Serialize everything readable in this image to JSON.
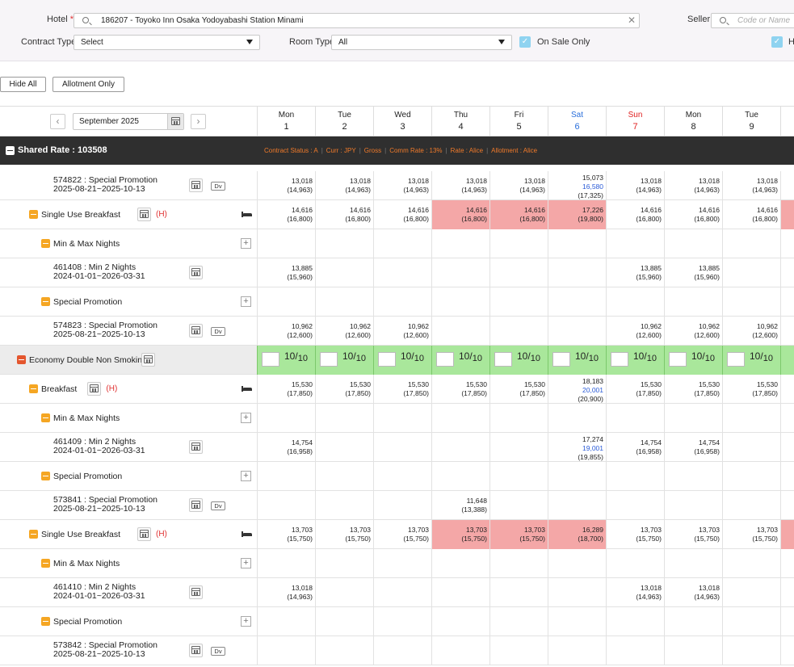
{
  "filters": {
    "hotel_label": "Hotel",
    "hotel_required": "*",
    "hotel_value": "186207 - Toyoko Inn Osaka Yodoyabashi Station Minami",
    "contract_type_label": "Contract Type",
    "contract_type_value": "Select",
    "room_type_label": "Room Type",
    "room_type_value": "All",
    "on_sale_label": "On Sale Only",
    "seller_label": "Seller",
    "seller_placeholder": "Code or Name",
    "second_check_label": "H"
  },
  "buttons": {
    "hide_all": "Hide All",
    "allotment_only": "Allotment Only"
  },
  "calendar": {
    "month": "September 2025",
    "prev": "‹",
    "next": "›"
  },
  "days": [
    {
      "name": "Mon",
      "date": "1",
      "color": "#222"
    },
    {
      "name": "Tue",
      "date": "2",
      "color": "#222"
    },
    {
      "name": "Wed",
      "date": "3",
      "color": "#222"
    },
    {
      "name": "Thu",
      "date": "4",
      "color": "#222"
    },
    {
      "name": "Fri",
      "date": "5",
      "color": "#222"
    },
    {
      "name": "Sat",
      "date": "6",
      "color": "#2a6fdb"
    },
    {
      "name": "Sun",
      "date": "7",
      "color": "#e02020"
    },
    {
      "name": "Mon",
      "date": "8",
      "color": "#222"
    },
    {
      "name": "Tue",
      "date": "9",
      "color": "#222"
    }
  ],
  "shared": {
    "title": "Shared Rate : 103508",
    "meta": [
      "Contract Status : A",
      "Curr : JPY",
      "Gross",
      "Comm Rate : 13%",
      "Rate : Alice",
      "Allotment : Alice"
    ]
  },
  "rows": [
    {
      "id": "r1",
      "label": "574822 : Special Promotion",
      "sub": "2025-08-21~2025-10-13",
      "cells": [
        [
          "13,018",
          "(14,963)"
        ],
        [
          "13,018",
          "(14,963)"
        ],
        [
          "13,018",
          "(14,963)"
        ],
        [
          "13,018",
          "(14,963)"
        ],
        [
          "13,018",
          "(14,963)"
        ],
        [
          "15,073",
          "16,580",
          "(17,325)"
        ],
        [
          "13,018",
          "(14,963)"
        ],
        [
          "13,018",
          "(14,963)"
        ],
        [
          "13,018",
          "(14,963)"
        ]
      ]
    },
    {
      "id": "r2",
      "label": "Single Use Breakfast",
      "badge": "(H)",
      "cells": [
        [
          "14,616",
          "(16,800)"
        ],
        [
          "14,616",
          "(16,800)"
        ],
        [
          "14,616",
          "(16,800)"
        ],
        [
          "14,616",
          "(16,800)"
        ],
        [
          "14,616",
          "(16,800)"
        ],
        [
          "17,226",
          "(19,800)"
        ],
        [
          "14,616",
          "(16,800)"
        ],
        [
          "14,616",
          "(16,800)"
        ],
        [
          "14,616",
          "(16,800)"
        ]
      ]
    },
    {
      "id": "r3",
      "label": "Min & Max Nights"
    },
    {
      "id": "r4",
      "label": "461408 : Min 2 Nights",
      "sub": "2024-01-01~2026-03-31",
      "cells": [
        [
          "13,885",
          "(15,960)"
        ],
        [],
        [],
        [],
        [],
        [],
        [
          "13,885",
          "(15,960)"
        ],
        [
          "13,885",
          "(15,960)"
        ],
        []
      ]
    },
    {
      "id": "r5",
      "label": "Special Promotion"
    },
    {
      "id": "r6",
      "label": "574823 : Special Promotion",
      "sub": "2025-08-21~2025-10-13",
      "cells": [
        [
          "10,962",
          "(12,600)"
        ],
        [
          "10,962",
          "(12,600)"
        ],
        [
          "10,962",
          "(12,600)"
        ],
        [],
        [],
        [],
        [
          "10,962",
          "(12,600)"
        ],
        [
          "10,962",
          "(12,600)"
        ],
        [
          "10,962",
          "(12,600)"
        ]
      ]
    },
    {
      "id": "r7",
      "label": "Economy Double Non Smoking",
      "alloc": {
        "value": "10",
        "total": "10"
      }
    },
    {
      "id": "r8",
      "label": "Breakfast",
      "badge": "(H)",
      "cells": [
        [
          "15,530",
          "(17,850)"
        ],
        [
          "15,530",
          "(17,850)"
        ],
        [
          "15,530",
          "(17,850)"
        ],
        [
          "15,530",
          "(17,850)"
        ],
        [
          "15,530",
          "(17,850)"
        ],
        [
          "18,183",
          "20,001",
          "(20,900)"
        ],
        [
          "15,530",
          "(17,850)"
        ],
        [
          "15,530",
          "(17,850)"
        ],
        [
          "15,530",
          "(17,850)"
        ]
      ]
    },
    {
      "id": "r9",
      "label": "Min & Max Nights"
    },
    {
      "id": "r10",
      "label": "461409 : Min 2 Nights",
      "sub": "2024-01-01~2026-03-31",
      "cells": [
        [
          "14,754",
          "(16,958)"
        ],
        [],
        [],
        [],
        [],
        [
          "17,274",
          "19,001",
          "(19,855)"
        ],
        [
          "14,754",
          "(16,958)"
        ],
        [
          "14,754",
          "(16,958)"
        ],
        []
      ]
    },
    {
      "id": "r11",
      "label": "Special Promotion"
    },
    {
      "id": "r12",
      "label": "573841 : Special Promotion",
      "sub": "2025-08-21~2025-10-13",
      "cells": [
        [],
        [],
        [],
        [
          "11,648",
          "(13,388)"
        ],
        [],
        [],
        [],
        [],
        []
      ]
    },
    {
      "id": "r13",
      "label": "Single Use Breakfast",
      "badge": "(H)",
      "cells": [
        [
          "13,703",
          "(15,750)"
        ],
        [
          "13,703",
          "(15,750)"
        ],
        [
          "13,703",
          "(15,750)"
        ],
        [
          "13,703",
          "(15,750)"
        ],
        [
          "13,703",
          "(15,750)"
        ],
        [
          "16,289",
          "(18,700)"
        ],
        [
          "13,703",
          "(15,750)"
        ],
        [
          "13,703",
          "(15,750)"
        ],
        [
          "13,703",
          "(15,750)"
        ]
      ]
    },
    {
      "id": "r14",
      "label": "Min & Max Nights"
    },
    {
      "id": "r15",
      "label": "461410 : Min 2 Nights",
      "sub": "2024-01-01~2026-03-31",
      "cells": [
        [
          "13,018",
          "(14,963)"
        ],
        [],
        [],
        [],
        [],
        [],
        [
          "13,018",
          "(14,963)"
        ],
        [
          "13,018",
          "(14,963)"
        ],
        []
      ]
    },
    {
      "id": "r16",
      "label": "Special Promotion"
    },
    {
      "id": "r17",
      "label": "573842 : Special Promotion",
      "sub": "2025-08-21~2025-10-13",
      "cells": [
        [],
        [],
        [],
        [],
        [],
        [],
        [],
        [],
        []
      ]
    }
  ],
  "colors": {
    "restricted": "#f4a7a7",
    "allotment": "#a9e79b",
    "sat_blue": "#2a6fdb",
    "sun_red": "#e02020",
    "accent_orange": "#f5a623"
  }
}
